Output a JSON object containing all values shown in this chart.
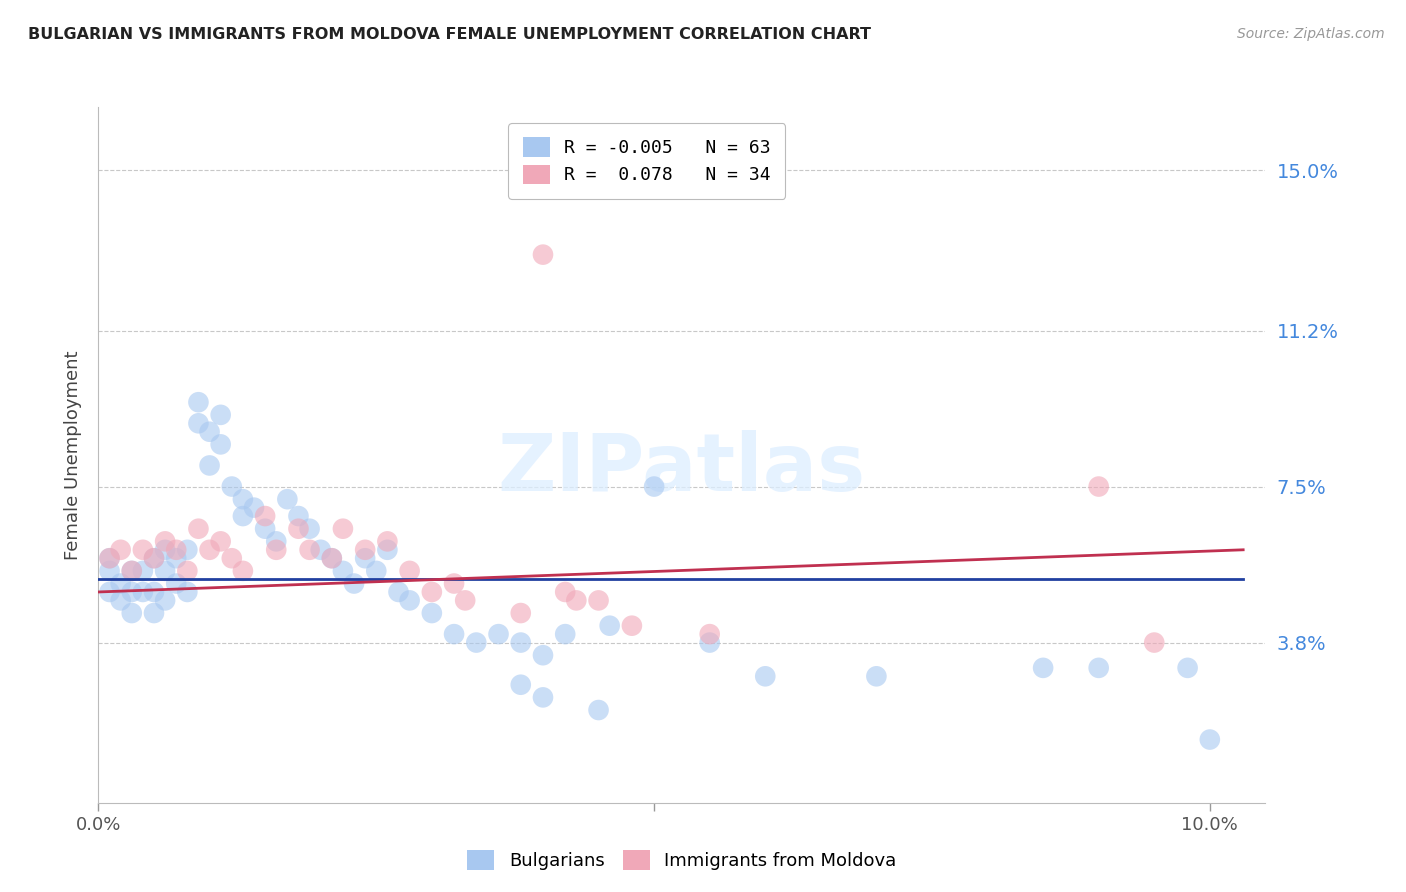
{
  "title": "BULGARIAN VS IMMIGRANTS FROM MOLDOVA FEMALE UNEMPLOYMENT CORRELATION CHART",
  "source": "Source: ZipAtlas.com",
  "ylabel": "Female Unemployment",
  "xlim": [
    0.0,
    0.105
  ],
  "ylim": [
    0.0,
    0.165
  ],
  "yticks": [
    0.038,
    0.075,
    0.112,
    0.15
  ],
  "ytick_labels": [
    "3.8%",
    "7.5%",
    "11.2%",
    "15.0%"
  ],
  "bg_color": "#ffffff",
  "grid_color": "#c8c8c8",
  "watermark": "ZIPatlas",
  "series1_label": "Bulgarians",
  "series2_label": "Immigrants from Moldova",
  "series1_color": "#a8c8f0",
  "series2_color": "#f0a8b8",
  "series1_line_color": "#2040a0",
  "series2_line_color": "#c03050",
  "r1": -0.005,
  "n1": 63,
  "r2": 0.078,
  "n2": 34,
  "bulgarians_x": [
    0.001,
    0.001,
    0.001,
    0.002,
    0.002,
    0.003,
    0.003,
    0.003,
    0.004,
    0.004,
    0.005,
    0.005,
    0.005,
    0.006,
    0.006,
    0.006,
    0.007,
    0.007,
    0.008,
    0.008,
    0.009,
    0.009,
    0.01,
    0.01,
    0.011,
    0.011,
    0.012,
    0.013,
    0.013,
    0.014,
    0.015,
    0.016,
    0.017,
    0.018,
    0.019,
    0.02,
    0.021,
    0.022,
    0.023,
    0.024,
    0.025,
    0.026,
    0.027,
    0.028,
    0.03,
    0.032,
    0.034,
    0.036,
    0.038,
    0.04,
    0.042,
    0.046,
    0.05,
    0.055,
    0.06,
    0.038,
    0.04,
    0.07,
    0.085,
    0.09,
    0.045,
    0.098,
    0.1
  ],
  "bulgarians_y": [
    0.058,
    0.055,
    0.05,
    0.052,
    0.048,
    0.055,
    0.05,
    0.045,
    0.055,
    0.05,
    0.058,
    0.05,
    0.045,
    0.06,
    0.055,
    0.048,
    0.058,
    0.052,
    0.06,
    0.05,
    0.095,
    0.09,
    0.088,
    0.08,
    0.092,
    0.085,
    0.075,
    0.072,
    0.068,
    0.07,
    0.065,
    0.062,
    0.072,
    0.068,
    0.065,
    0.06,
    0.058,
    0.055,
    0.052,
    0.058,
    0.055,
    0.06,
    0.05,
    0.048,
    0.045,
    0.04,
    0.038,
    0.04,
    0.038,
    0.035,
    0.04,
    0.042,
    0.075,
    0.038,
    0.03,
    0.028,
    0.025,
    0.03,
    0.032,
    0.032,
    0.022,
    0.032,
    0.015
  ],
  "moldova_x": [
    0.001,
    0.002,
    0.003,
    0.004,
    0.005,
    0.006,
    0.007,
    0.008,
    0.009,
    0.01,
    0.011,
    0.012,
    0.013,
    0.015,
    0.016,
    0.018,
    0.019,
    0.021,
    0.022,
    0.024,
    0.026,
    0.028,
    0.03,
    0.032,
    0.033,
    0.038,
    0.04,
    0.042,
    0.043,
    0.045,
    0.048,
    0.055,
    0.09,
    0.095
  ],
  "moldova_y": [
    0.058,
    0.06,
    0.055,
    0.06,
    0.058,
    0.062,
    0.06,
    0.055,
    0.065,
    0.06,
    0.062,
    0.058,
    0.055,
    0.068,
    0.06,
    0.065,
    0.06,
    0.058,
    0.065,
    0.06,
    0.062,
    0.055,
    0.05,
    0.052,
    0.048,
    0.045,
    0.13,
    0.05,
    0.048,
    0.048,
    0.042,
    0.04,
    0.075,
    0.038
  ],
  "line1_x0": 0.0,
  "line1_y0": 0.053,
  "line1_x1": 0.103,
  "line1_y1": 0.053,
  "line2_x0": 0.0,
  "line2_y0": 0.05,
  "line2_x1": 0.103,
  "line2_y1": 0.06
}
